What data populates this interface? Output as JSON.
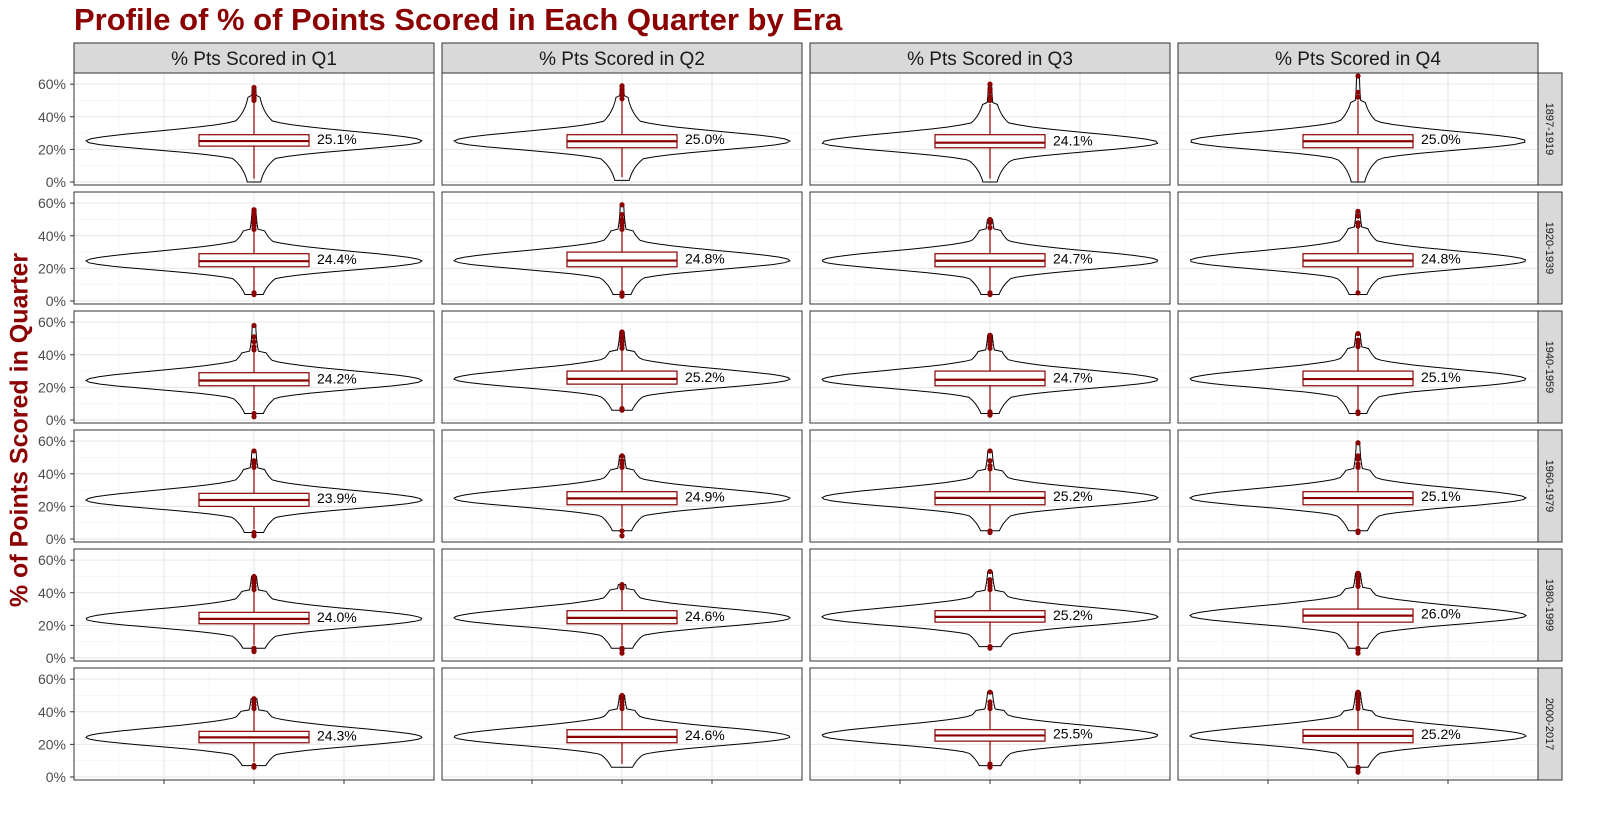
{
  "chart_data": {
    "type": "violin+box",
    "title": "Profile of % of Points Scored in Each Quarter by Era",
    "ylabel": "% of Points Scored in Quarter",
    "xlabel": "",
    "ylim": [
      0,
      0.65
    ],
    "y_ticks": [
      "0%",
      "20%",
      "40%",
      "60%"
    ],
    "y_tick_values": [
      0,
      0.2,
      0.4,
      0.6
    ],
    "grid": true,
    "facet_columns": [
      "% Pts Scored in Q1",
      "% Pts Scored in Q2",
      "% Pts Scored in Q3",
      "% Pts Scored in Q4"
    ],
    "facet_rows": [
      "1897-1919",
      "1920-1939",
      "1940-1959",
      "1960-1979",
      "1980-1999",
      "2000-2017"
    ],
    "colors": {
      "box": "#8b0000",
      "violin": "#000000",
      "title": "#8b0000",
      "strip": "#d9d9d9"
    },
    "panels": [
      [
        {
          "median_label": "25.1%",
          "q1": 0.22,
          "median": 0.251,
          "q3": 0.29,
          "min": 0.02,
          "max": 0.53,
          "outliers": [
            0.54,
            0.55,
            0.58,
            0.5,
            0.51,
            0.52
          ]
        },
        {
          "median_label": "25.0%",
          "q1": 0.21,
          "median": 0.25,
          "q3": 0.29,
          "min": 0.03,
          "max": 0.52,
          "outliers": [
            0.53,
            0.55,
            0.57,
            0.59,
            0.51
          ]
        },
        {
          "median_label": "24.1%",
          "q1": 0.21,
          "median": 0.241,
          "q3": 0.29,
          "min": 0.02,
          "max": 0.48,
          "outliers": [
            0.5,
            0.52,
            0.55,
            0.57,
            0.6
          ]
        },
        {
          "median_label": "25.0%",
          "q1": 0.21,
          "median": 0.25,
          "q3": 0.29,
          "min": 0.0,
          "max": 0.5,
          "outliers": [
            0.52,
            0.55,
            0.65
          ]
        }
      ],
      [
        {
          "median_label": "24.4%",
          "q1": 0.21,
          "median": 0.244,
          "q3": 0.29,
          "min": 0.06,
          "max": 0.43,
          "outliers": [
            0.04,
            0.05,
            0.44,
            0.46,
            0.48,
            0.5,
            0.52,
            0.54,
            0.56
          ]
        },
        {
          "median_label": "24.8%",
          "q1": 0.21,
          "median": 0.248,
          "q3": 0.3,
          "min": 0.06,
          "max": 0.43,
          "outliers": [
            0.03,
            0.04,
            0.05,
            0.44,
            0.46,
            0.48,
            0.5,
            0.53,
            0.59
          ]
        },
        {
          "median_label": "24.7%",
          "q1": 0.21,
          "median": 0.247,
          "q3": 0.29,
          "min": 0.06,
          "max": 0.44,
          "outliers": [
            0.04,
            0.05,
            0.45,
            0.48,
            0.5
          ]
        },
        {
          "median_label": "24.8%",
          "q1": 0.21,
          "median": 0.248,
          "q3": 0.29,
          "min": 0.06,
          "max": 0.45,
          "outliers": [
            0.05,
            0.46,
            0.48,
            0.52,
            0.55
          ]
        }
      ],
      [
        {
          "median_label": "24.2%",
          "q1": 0.21,
          "median": 0.242,
          "q3": 0.29,
          "min": 0.06,
          "max": 0.42,
          "outliers": [
            0.02,
            0.04,
            0.43,
            0.45,
            0.48,
            0.51,
            0.58
          ]
        },
        {
          "median_label": "25.2%",
          "q1": 0.22,
          "median": 0.252,
          "q3": 0.3,
          "min": 0.08,
          "max": 0.43,
          "outliers": [
            0.06,
            0.07,
            0.44,
            0.46,
            0.48,
            0.5,
            0.52,
            0.54
          ]
        },
        {
          "median_label": "24.7%",
          "q1": 0.21,
          "median": 0.247,
          "q3": 0.3,
          "min": 0.06,
          "max": 0.43,
          "outliers": [
            0.03,
            0.04,
            0.05,
            0.44,
            0.46,
            0.48,
            0.5,
            0.52
          ]
        },
        {
          "median_label": "25.1%",
          "q1": 0.21,
          "median": 0.251,
          "q3": 0.3,
          "min": 0.06,
          "max": 0.44,
          "outliers": [
            0.04,
            0.05,
            0.45,
            0.47,
            0.49,
            0.53
          ]
        }
      ],
      [
        {
          "median_label": "23.9%",
          "q1": 0.2,
          "median": 0.239,
          "q3": 0.28,
          "min": 0.06,
          "max": 0.43,
          "outliers": [
            0.02,
            0.04,
            0.44,
            0.46,
            0.48,
            0.54
          ]
        },
        {
          "median_label": "24.9%",
          "q1": 0.21,
          "median": 0.249,
          "q3": 0.29,
          "min": 0.07,
          "max": 0.43,
          "outliers": [
            0.02,
            0.05,
            0.44,
            0.46,
            0.48,
            0.51
          ]
        },
        {
          "median_label": "25.2%",
          "q1": 0.21,
          "median": 0.252,
          "q3": 0.29,
          "min": 0.07,
          "max": 0.42,
          "outliers": [
            0.04,
            0.05,
            0.43,
            0.45,
            0.48,
            0.54
          ]
        },
        {
          "median_label": "25.1%",
          "q1": 0.21,
          "median": 0.251,
          "q3": 0.29,
          "min": 0.07,
          "max": 0.43,
          "outliers": [
            0.04,
            0.05,
            0.44,
            0.46,
            0.49,
            0.51,
            0.59
          ]
        }
      ],
      [
        {
          "median_label": "24.0%",
          "q1": 0.21,
          "median": 0.24,
          "q3": 0.28,
          "min": 0.08,
          "max": 0.41,
          "outliers": [
            0.04,
            0.05,
            0.06,
            0.42,
            0.44,
            0.46,
            0.48,
            0.5
          ]
        },
        {
          "median_label": "24.6%",
          "q1": 0.21,
          "median": 0.246,
          "q3": 0.29,
          "min": 0.08,
          "max": 0.42,
          "outliers": [
            0.03,
            0.05,
            0.06,
            0.43,
            0.44,
            0.45
          ]
        },
        {
          "median_label": "25.2%",
          "q1": 0.22,
          "median": 0.252,
          "q3": 0.29,
          "min": 0.09,
          "max": 0.41,
          "outliers": [
            0.06,
            0.07,
            0.42,
            0.44,
            0.46,
            0.48,
            0.53
          ]
        },
        {
          "median_label": "26.0%",
          "q1": 0.22,
          "median": 0.26,
          "q3": 0.3,
          "min": 0.08,
          "max": 0.43,
          "outliers": [
            0.03,
            0.05,
            0.06,
            0.44,
            0.46,
            0.48,
            0.5,
            0.52
          ]
        }
      ],
      [
        {
          "median_label": "24.3%",
          "q1": 0.21,
          "median": 0.243,
          "q3": 0.28,
          "min": 0.09,
          "max": 0.41,
          "outliers": [
            0.06,
            0.07,
            0.42,
            0.44,
            0.46,
            0.48
          ]
        },
        {
          "median_label": "24.6%",
          "q1": 0.21,
          "median": 0.246,
          "q3": 0.29,
          "min": 0.08,
          "max": 0.41,
          "outliers": [
            0.42,
            0.44,
            0.46,
            0.48,
            0.5
          ]
        },
        {
          "median_label": "25.5%",
          "q1": 0.22,
          "median": 0.255,
          "q3": 0.29,
          "min": 0.09,
          "max": 0.41,
          "outliers": [
            0.06,
            0.07,
            0.08,
            0.42,
            0.44,
            0.46,
            0.52
          ]
        },
        {
          "median_label": "25.2%",
          "q1": 0.21,
          "median": 0.252,
          "q3": 0.29,
          "min": 0.08,
          "max": 0.41,
          "outliers": [
            0.03,
            0.05,
            0.06,
            0.42,
            0.44,
            0.46,
            0.48,
            0.5,
            0.52
          ]
        }
      ]
    ]
  }
}
